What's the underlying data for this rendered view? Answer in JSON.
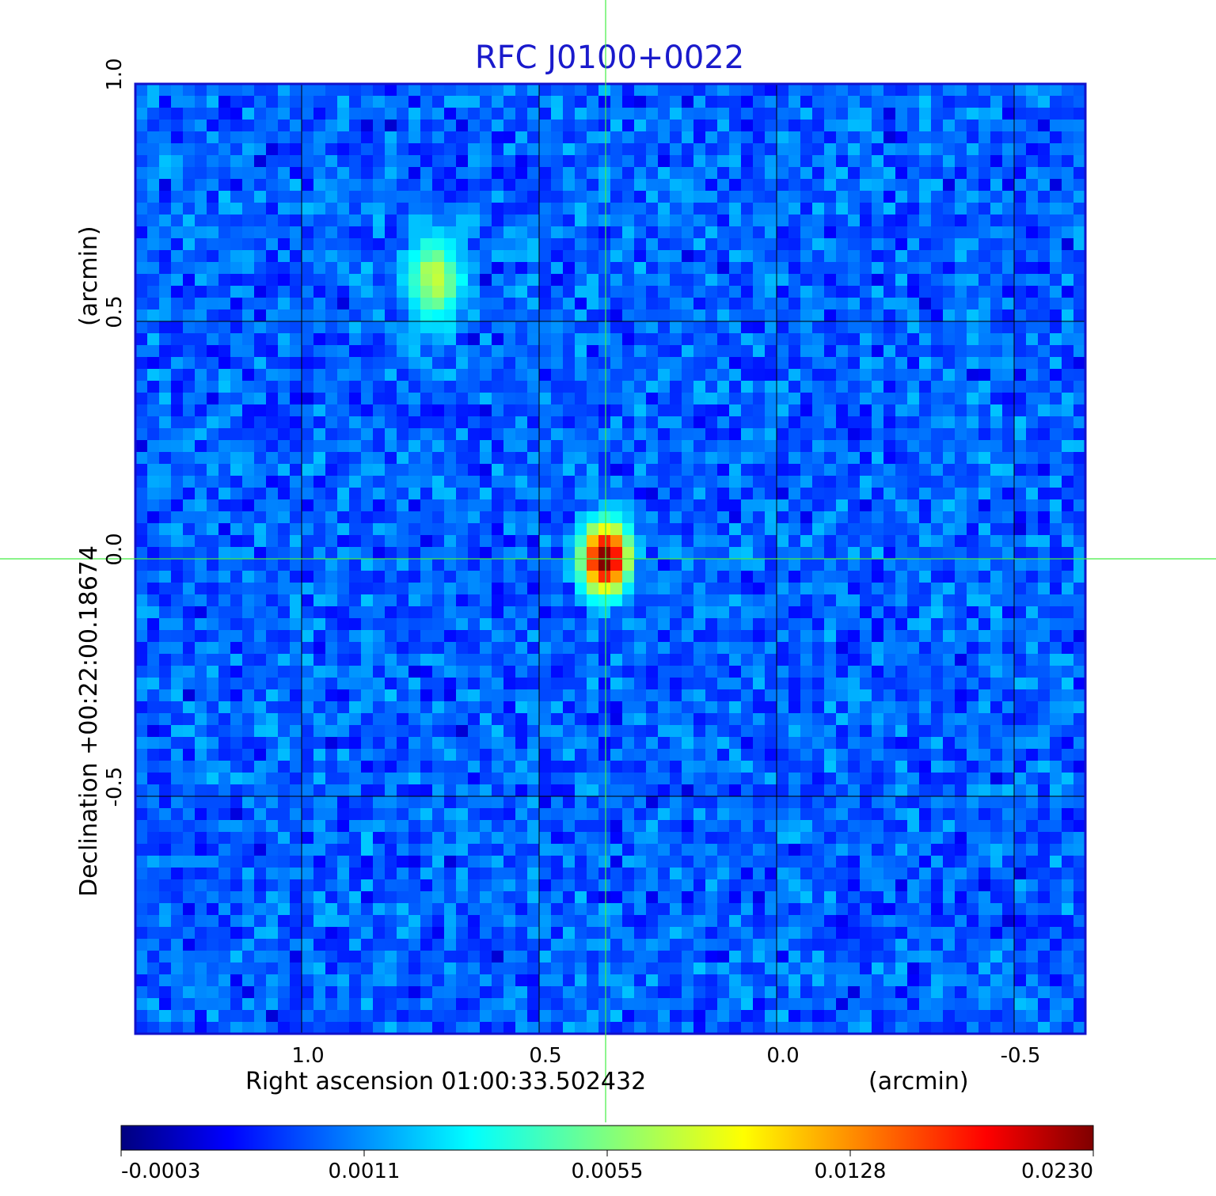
{
  "chart_data": {
    "type": "heatmap",
    "title": "RFC J0100+0022",
    "xlabel": "Right ascension  01:00:33.502432",
    "xunit": "(arcmin)",
    "ylabel": "Declination  +00:22:00.18674",
    "yunit": "(arcmin)",
    "xlim": [
      1.35,
      -0.65
    ],
    "ylim": [
      -1.0,
      1.0
    ],
    "x_ticks": [
      {
        "value": 1.0,
        "label": "1.0"
      },
      {
        "value": 0.5,
        "label": "0.5"
      },
      {
        "value": 0.0,
        "label": "0.0"
      },
      {
        "value": -0.5,
        "label": "-0.5"
      }
    ],
    "y_ticks": [
      {
        "value": 1.0,
        "label": "1.0"
      },
      {
        "value": 0.5,
        "label": "0.5"
      },
      {
        "value": 0.0,
        "label": "0.0"
      },
      {
        "value": -0.5,
        "label": "-0.5"
      }
    ],
    "grid": true,
    "crosshair": {
      "x": 0.36,
      "y": 0.0,
      "color": "#44ee44"
    },
    "colormap": "jet",
    "colorbar": {
      "position": "bottom",
      "ticks": [
        "-0.0003",
        "0.0011",
        "0.0055",
        "0.0128",
        "0.0230"
      ]
    },
    "background_level": 0.0006,
    "sources": [
      {
        "x": 0.36,
        "y": 0.0,
        "peak": 0.023,
        "sigma_x": 0.028,
        "sigma_y": 0.042
      },
      {
        "x": 0.72,
        "y": 0.59,
        "peak": 0.0062,
        "sigma_x": 0.032,
        "sigma_y": 0.055
      }
    ]
  }
}
